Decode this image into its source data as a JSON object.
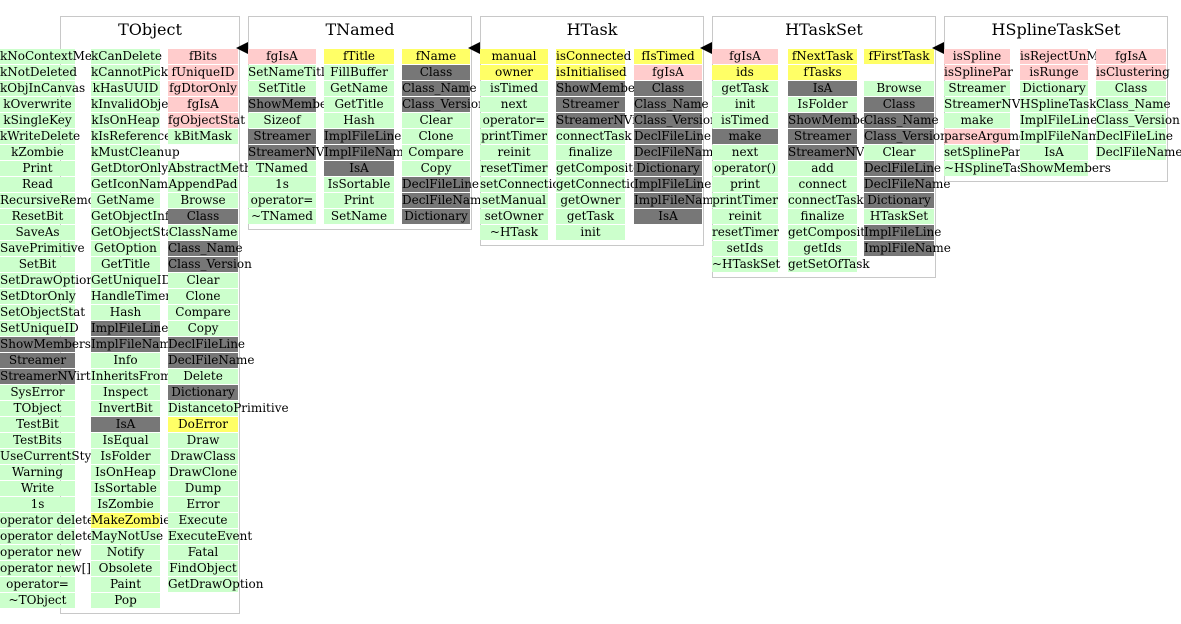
{
  "colors": {
    "green": "#ccffcc",
    "red": "#ffcccc",
    "yellow": "#ffff66",
    "dark": "#777777"
  },
  "classes": [
    {
      "title": "TObject",
      "columns": [
        [
          {
            "t": "kNoContextMenu",
            "c": "g"
          },
          {
            "t": "kNotDeleted",
            "c": "g"
          },
          {
            "t": "kObjInCanvas",
            "c": "g"
          },
          {
            "t": "kOverwrite",
            "c": "g"
          },
          {
            "t": "kSingleKey",
            "c": "g"
          },
          {
            "t": "kWriteDelete",
            "c": "g"
          },
          {
            "t": "kZombie",
            "c": "g"
          },
          {
            "t": "Print",
            "c": "g"
          },
          {
            "t": "Read",
            "c": "g"
          },
          {
            "t": "RecursiveRemove",
            "c": "g"
          },
          {
            "t": "ResetBit",
            "c": "g"
          },
          {
            "t": "SaveAs",
            "c": "g"
          },
          {
            "t": "SavePrimitive",
            "c": "g"
          },
          {
            "t": "SetBit",
            "c": "g"
          },
          {
            "t": "SetDrawOption",
            "c": "g"
          },
          {
            "t": "SetDtorOnly",
            "c": "g"
          },
          {
            "t": "SetObjectStat",
            "c": "g"
          },
          {
            "t": "SetUniqueID",
            "c": "g"
          },
          {
            "t": "ShowMembers",
            "c": "d"
          },
          {
            "t": "Streamer",
            "c": "d"
          },
          {
            "t": "StreamerNVirtual",
            "c": "d"
          },
          {
            "t": "SysError",
            "c": "g"
          },
          {
            "t": "TObject",
            "c": "g"
          },
          {
            "t": "TestBit",
            "c": "g"
          },
          {
            "t": "TestBits",
            "c": "g"
          },
          {
            "t": "UseCurrentStyle",
            "c": "g"
          },
          {
            "t": "Warning",
            "c": "g"
          },
          {
            "t": "Write",
            "c": "g"
          },
          {
            "t": "1s",
            "c": "g"
          },
          {
            "t": "operator delete",
            "c": "g"
          },
          {
            "t": "operator delete[]",
            "c": "g"
          },
          {
            "t": "operator new",
            "c": "g"
          },
          {
            "t": "operator new[]",
            "c": "g"
          },
          {
            "t": "operator=",
            "c": "g"
          },
          {
            "t": "~TObject",
            "c": "g"
          }
        ],
        [
          {
            "t": "kCanDelete",
            "c": "g"
          },
          {
            "t": "kCannotPick",
            "c": "g"
          },
          {
            "t": "kHasUUID",
            "c": "g"
          },
          {
            "t": "kInvalidObject",
            "c": "g"
          },
          {
            "t": "kIsOnHeap",
            "c": "g"
          },
          {
            "t": "kIsReferenced",
            "c": "g"
          },
          {
            "t": "kMustCleanup",
            "c": "g"
          },
          {
            "t": "GetDtorOnly",
            "c": "g"
          },
          {
            "t": "GetIconName",
            "c": "g"
          },
          {
            "t": "GetName",
            "c": "g"
          },
          {
            "t": "GetObjectInfo",
            "c": "g"
          },
          {
            "t": "GetObjectStat",
            "c": "g"
          },
          {
            "t": "GetOption",
            "c": "g"
          },
          {
            "t": "GetTitle",
            "c": "g"
          },
          {
            "t": "GetUniqueID",
            "c": "g"
          },
          {
            "t": "HandleTimer",
            "c": "g"
          },
          {
            "t": "Hash",
            "c": "g"
          },
          {
            "t": "ImplFileLine",
            "c": "d"
          },
          {
            "t": "ImplFileName",
            "c": "d"
          },
          {
            "t": "Info",
            "c": "g"
          },
          {
            "t": "InheritsFrom",
            "c": "g"
          },
          {
            "t": "Inspect",
            "c": "g"
          },
          {
            "t": "InvertBit",
            "c": "g"
          },
          {
            "t": "IsA",
            "c": "d"
          },
          {
            "t": "IsEqual",
            "c": "g"
          },
          {
            "t": "IsFolder",
            "c": "g"
          },
          {
            "t": "IsOnHeap",
            "c": "g"
          },
          {
            "t": "IsSortable",
            "c": "g"
          },
          {
            "t": "IsZombie",
            "c": "g"
          },
          {
            "t": "MakeZombie",
            "c": "y"
          },
          {
            "t": "MayNotUse",
            "c": "g"
          },
          {
            "t": "Notify",
            "c": "g"
          },
          {
            "t": "Obsolete",
            "c": "g"
          },
          {
            "t": "Paint",
            "c": "g"
          },
          {
            "t": "Pop",
            "c": "g"
          }
        ],
        [
          {
            "t": "fBits",
            "c": "r"
          },
          {
            "t": "fUniqueID",
            "c": "r"
          },
          {
            "t": "fgDtorOnly",
            "c": "r"
          },
          {
            "t": "fgIsA",
            "c": "r"
          },
          {
            "t": "fgObjectStat",
            "c": "r"
          },
          {
            "t": "kBitMask",
            "c": "g"
          },
          {
            "t": "",
            "c": "none"
          },
          {
            "t": "AbstractMethod",
            "c": "g"
          },
          {
            "t": "AppendPad",
            "c": "g"
          },
          {
            "t": "Browse",
            "c": "g"
          },
          {
            "t": "Class",
            "c": "d"
          },
          {
            "t": "ClassName",
            "c": "g"
          },
          {
            "t": "Class_Name",
            "c": "d"
          },
          {
            "t": "Class_Version",
            "c": "d"
          },
          {
            "t": "Clear",
            "c": "g"
          },
          {
            "t": "Clone",
            "c": "g"
          },
          {
            "t": "Compare",
            "c": "g"
          },
          {
            "t": "Copy",
            "c": "g"
          },
          {
            "t": "DeclFileLine",
            "c": "d"
          },
          {
            "t": "DeclFileName",
            "c": "d"
          },
          {
            "t": "Delete",
            "c": "g"
          },
          {
            "t": "Dictionary",
            "c": "d"
          },
          {
            "t": "DistancetoPrimitive",
            "c": "g"
          },
          {
            "t": "DoError",
            "c": "y"
          },
          {
            "t": "Draw",
            "c": "g"
          },
          {
            "t": "DrawClass",
            "c": "g"
          },
          {
            "t": "DrawClone",
            "c": "g"
          },
          {
            "t": "Dump",
            "c": "g"
          },
          {
            "t": "Error",
            "c": "g"
          },
          {
            "t": "Execute",
            "c": "g"
          },
          {
            "t": "ExecuteEvent",
            "c": "g"
          },
          {
            "t": "Fatal",
            "c": "g"
          },
          {
            "t": "FindObject",
            "c": "g"
          },
          {
            "t": "GetDrawOption",
            "c": "g"
          }
        ]
      ]
    },
    {
      "title": "TNamed",
      "columns": [
        [
          {
            "t": "fgIsA",
            "c": "r"
          },
          {
            "t": "SetNameTitle",
            "c": "g"
          },
          {
            "t": "SetTitle",
            "c": "g"
          },
          {
            "t": "ShowMembers",
            "c": "d"
          },
          {
            "t": "Sizeof",
            "c": "g"
          },
          {
            "t": "Streamer",
            "c": "d"
          },
          {
            "t": "StreamerNVirtual",
            "c": "d"
          },
          {
            "t": "TNamed",
            "c": "g"
          },
          {
            "t": "1s",
            "c": "g"
          },
          {
            "t": "operator=",
            "c": "g"
          },
          {
            "t": "~TNamed",
            "c": "g"
          }
        ],
        [
          {
            "t": "fTitle",
            "c": "y"
          },
          {
            "t": "FillBuffer",
            "c": "g"
          },
          {
            "t": "GetName",
            "c": "g"
          },
          {
            "t": "GetTitle",
            "c": "g"
          },
          {
            "t": "Hash",
            "c": "g"
          },
          {
            "t": "ImplFileLine",
            "c": "d"
          },
          {
            "t": "ImplFileName",
            "c": "d"
          },
          {
            "t": "IsA",
            "c": "d"
          },
          {
            "t": "IsSortable",
            "c": "g"
          },
          {
            "t": "Print",
            "c": "g"
          },
          {
            "t": "SetName",
            "c": "g"
          }
        ],
        [
          {
            "t": "fName",
            "c": "y"
          },
          {
            "t": "Class",
            "c": "d"
          },
          {
            "t": "Class_Name",
            "c": "d"
          },
          {
            "t": "Class_Version",
            "c": "d"
          },
          {
            "t": "Clear",
            "c": "g"
          },
          {
            "t": "Clone",
            "c": "g"
          },
          {
            "t": "Compare",
            "c": "g"
          },
          {
            "t": "Copy",
            "c": "g"
          },
          {
            "t": "DeclFileLine",
            "c": "d"
          },
          {
            "t": "DeclFileName",
            "c": "d"
          },
          {
            "t": "Dictionary",
            "c": "d"
          }
        ]
      ]
    },
    {
      "title": "HTask",
      "columns": [
        [
          {
            "t": "manual",
            "c": "y"
          },
          {
            "t": "owner",
            "c": "y"
          },
          {
            "t": "isTimed",
            "c": "g"
          },
          {
            "t": "next",
            "c": "g"
          },
          {
            "t": "operator=",
            "c": "g"
          },
          {
            "t": "printTimer",
            "c": "g"
          },
          {
            "t": "reinit",
            "c": "g"
          },
          {
            "t": "resetTimer",
            "c": "g"
          },
          {
            "t": "setConnections",
            "c": "g"
          },
          {
            "t": "setManual",
            "c": "g"
          },
          {
            "t": "setOwner",
            "c": "g"
          },
          {
            "t": "~HTask",
            "c": "g"
          }
        ],
        [
          {
            "t": "isConnected",
            "c": "y"
          },
          {
            "t": "isInitialised",
            "c": "y"
          },
          {
            "t": "ShowMembers",
            "c": "d"
          },
          {
            "t": "Streamer",
            "c": "d"
          },
          {
            "t": "StreamerNVirtual",
            "c": "d"
          },
          {
            "t": "connectTask",
            "c": "g"
          },
          {
            "t": "finalize",
            "c": "g"
          },
          {
            "t": "getComposite",
            "c": "g"
          },
          {
            "t": "getConnections",
            "c": "g"
          },
          {
            "t": "getOwner",
            "c": "g"
          },
          {
            "t": "getTask",
            "c": "g"
          },
          {
            "t": "init",
            "c": "g"
          }
        ],
        [
          {
            "t": "fIsTimed",
            "c": "y"
          },
          {
            "t": "fgIsA",
            "c": "r"
          },
          {
            "t": "Class",
            "c": "d"
          },
          {
            "t": "Class_Name",
            "c": "d"
          },
          {
            "t": "Class_Version",
            "c": "d"
          },
          {
            "t": "DeclFileLine",
            "c": "d"
          },
          {
            "t": "DeclFileName",
            "c": "d"
          },
          {
            "t": "Dictionary",
            "c": "d"
          },
          {
            "t": "ImplFileLine",
            "c": "d"
          },
          {
            "t": "ImplFileName",
            "c": "d"
          },
          {
            "t": "IsA",
            "c": "d"
          }
        ]
      ]
    },
    {
      "title": "HTaskSet",
      "columns": [
        [
          {
            "t": "fgIsA",
            "c": "r"
          },
          {
            "t": "ids",
            "c": "y"
          },
          {
            "t": "getTask",
            "c": "g"
          },
          {
            "t": "init",
            "c": "g"
          },
          {
            "t": "isTimed",
            "c": "g"
          },
          {
            "t": "make",
            "c": "d"
          },
          {
            "t": "next",
            "c": "g"
          },
          {
            "t": "operator()",
            "c": "g"
          },
          {
            "t": "print",
            "c": "g"
          },
          {
            "t": "printTimer",
            "c": "g"
          },
          {
            "t": "reinit",
            "c": "g"
          },
          {
            "t": "resetTimer",
            "c": "g"
          },
          {
            "t": "setIds",
            "c": "g"
          },
          {
            "t": "~HTaskSet",
            "c": "g"
          }
        ],
        [
          {
            "t": "fNextTask",
            "c": "y"
          },
          {
            "t": "fTasks",
            "c": "y"
          },
          {
            "t": "IsA",
            "c": "d"
          },
          {
            "t": "IsFolder",
            "c": "g"
          },
          {
            "t": "ShowMembers",
            "c": "d"
          },
          {
            "t": "Streamer",
            "c": "d"
          },
          {
            "t": "StreamerNVirtual",
            "c": "d"
          },
          {
            "t": "add",
            "c": "g"
          },
          {
            "t": "connect",
            "c": "g"
          },
          {
            "t": "connectTask",
            "c": "g"
          },
          {
            "t": "finalize",
            "c": "g"
          },
          {
            "t": "getComposite",
            "c": "g"
          },
          {
            "t": "getIds",
            "c": "g"
          },
          {
            "t": "getSetOfTask",
            "c": "g"
          }
        ],
        [
          {
            "t": "fFirstTask",
            "c": "y"
          },
          {
            "t": "",
            "c": "none"
          },
          {
            "t": "Browse",
            "c": "g"
          },
          {
            "t": "Class",
            "c": "d"
          },
          {
            "t": "Class_Name",
            "c": "d"
          },
          {
            "t": "Class_Version",
            "c": "d"
          },
          {
            "t": "Clear",
            "c": "g"
          },
          {
            "t": "DeclFileLine",
            "c": "d"
          },
          {
            "t": "DeclFileName",
            "c": "d"
          },
          {
            "t": "Dictionary",
            "c": "d"
          },
          {
            "t": "HTaskSet",
            "c": "g"
          },
          {
            "t": "ImplFileLine",
            "c": "d"
          },
          {
            "t": "ImplFileName",
            "c": "d"
          }
        ]
      ]
    },
    {
      "title": "HSplineTaskSet",
      "columns": [
        [
          {
            "t": "isSpline",
            "c": "r"
          },
          {
            "t": "isSplinePar",
            "c": "r"
          },
          {
            "t": "Streamer",
            "c": "g"
          },
          {
            "t": "StreamerNVirtual",
            "c": "g"
          },
          {
            "t": "make",
            "c": "g"
          },
          {
            "t": "parseArguments",
            "c": "r"
          },
          {
            "t": "setSplinePar",
            "c": "g"
          },
          {
            "t": "~HSplineTaskSet",
            "c": "g"
          }
        ],
        [
          {
            "t": "isRejectUnMatched",
            "c": "r"
          },
          {
            "t": "isRunge",
            "c": "r"
          },
          {
            "t": "Dictionary",
            "c": "g"
          },
          {
            "t": "HSplineTaskSet",
            "c": "g"
          },
          {
            "t": "ImplFileLine",
            "c": "g"
          },
          {
            "t": "ImplFileName",
            "c": "g"
          },
          {
            "t": "IsA",
            "c": "g"
          },
          {
            "t": "ShowMembers",
            "c": "g"
          }
        ],
        [
          {
            "t": "fgIsA",
            "c": "r"
          },
          {
            "t": "isClustering",
            "c": "r"
          },
          {
            "t": "Class",
            "c": "g"
          },
          {
            "t": "Class_Name",
            "c": "g"
          },
          {
            "t": "Class_Version",
            "c": "g"
          },
          {
            "t": "DeclFileLine",
            "c": "g"
          },
          {
            "t": "DeclFileName",
            "c": "g"
          }
        ]
      ]
    }
  ]
}
